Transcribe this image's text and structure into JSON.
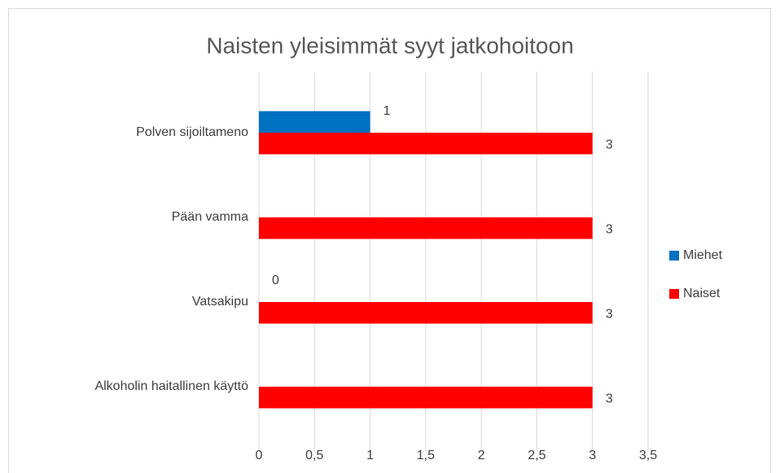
{
  "chart_data": {
    "type": "hbar",
    "title": "Naisten yleisimmät syyt jatkohoitoon",
    "categories": [
      "Polven sijoiltameno",
      "Pään vamma",
      "Vatsakipu",
      "Alkoholin haitallinen käyttö"
    ],
    "series": [
      {
        "name": "Miehet",
        "color": "#0070c0",
        "values": [
          1,
          null,
          0,
          null
        ]
      },
      {
        "name": "Naiset",
        "color": "#ff0000",
        "values": [
          3,
          3,
          3,
          3
        ]
      }
    ],
    "xlim": [
      0,
      3.5
    ],
    "xticks": [
      0,
      {
        "value": 0.5,
        "label": "0,5"
      },
      1,
      {
        "value": 1.5,
        "label": "1,5"
      },
      2,
      {
        "value": 2.5,
        "label": "2,5"
      },
      3,
      {
        "value": 3.5,
        "label": "3,5"
      }
    ],
    "grid": true,
    "legend": "right"
  }
}
